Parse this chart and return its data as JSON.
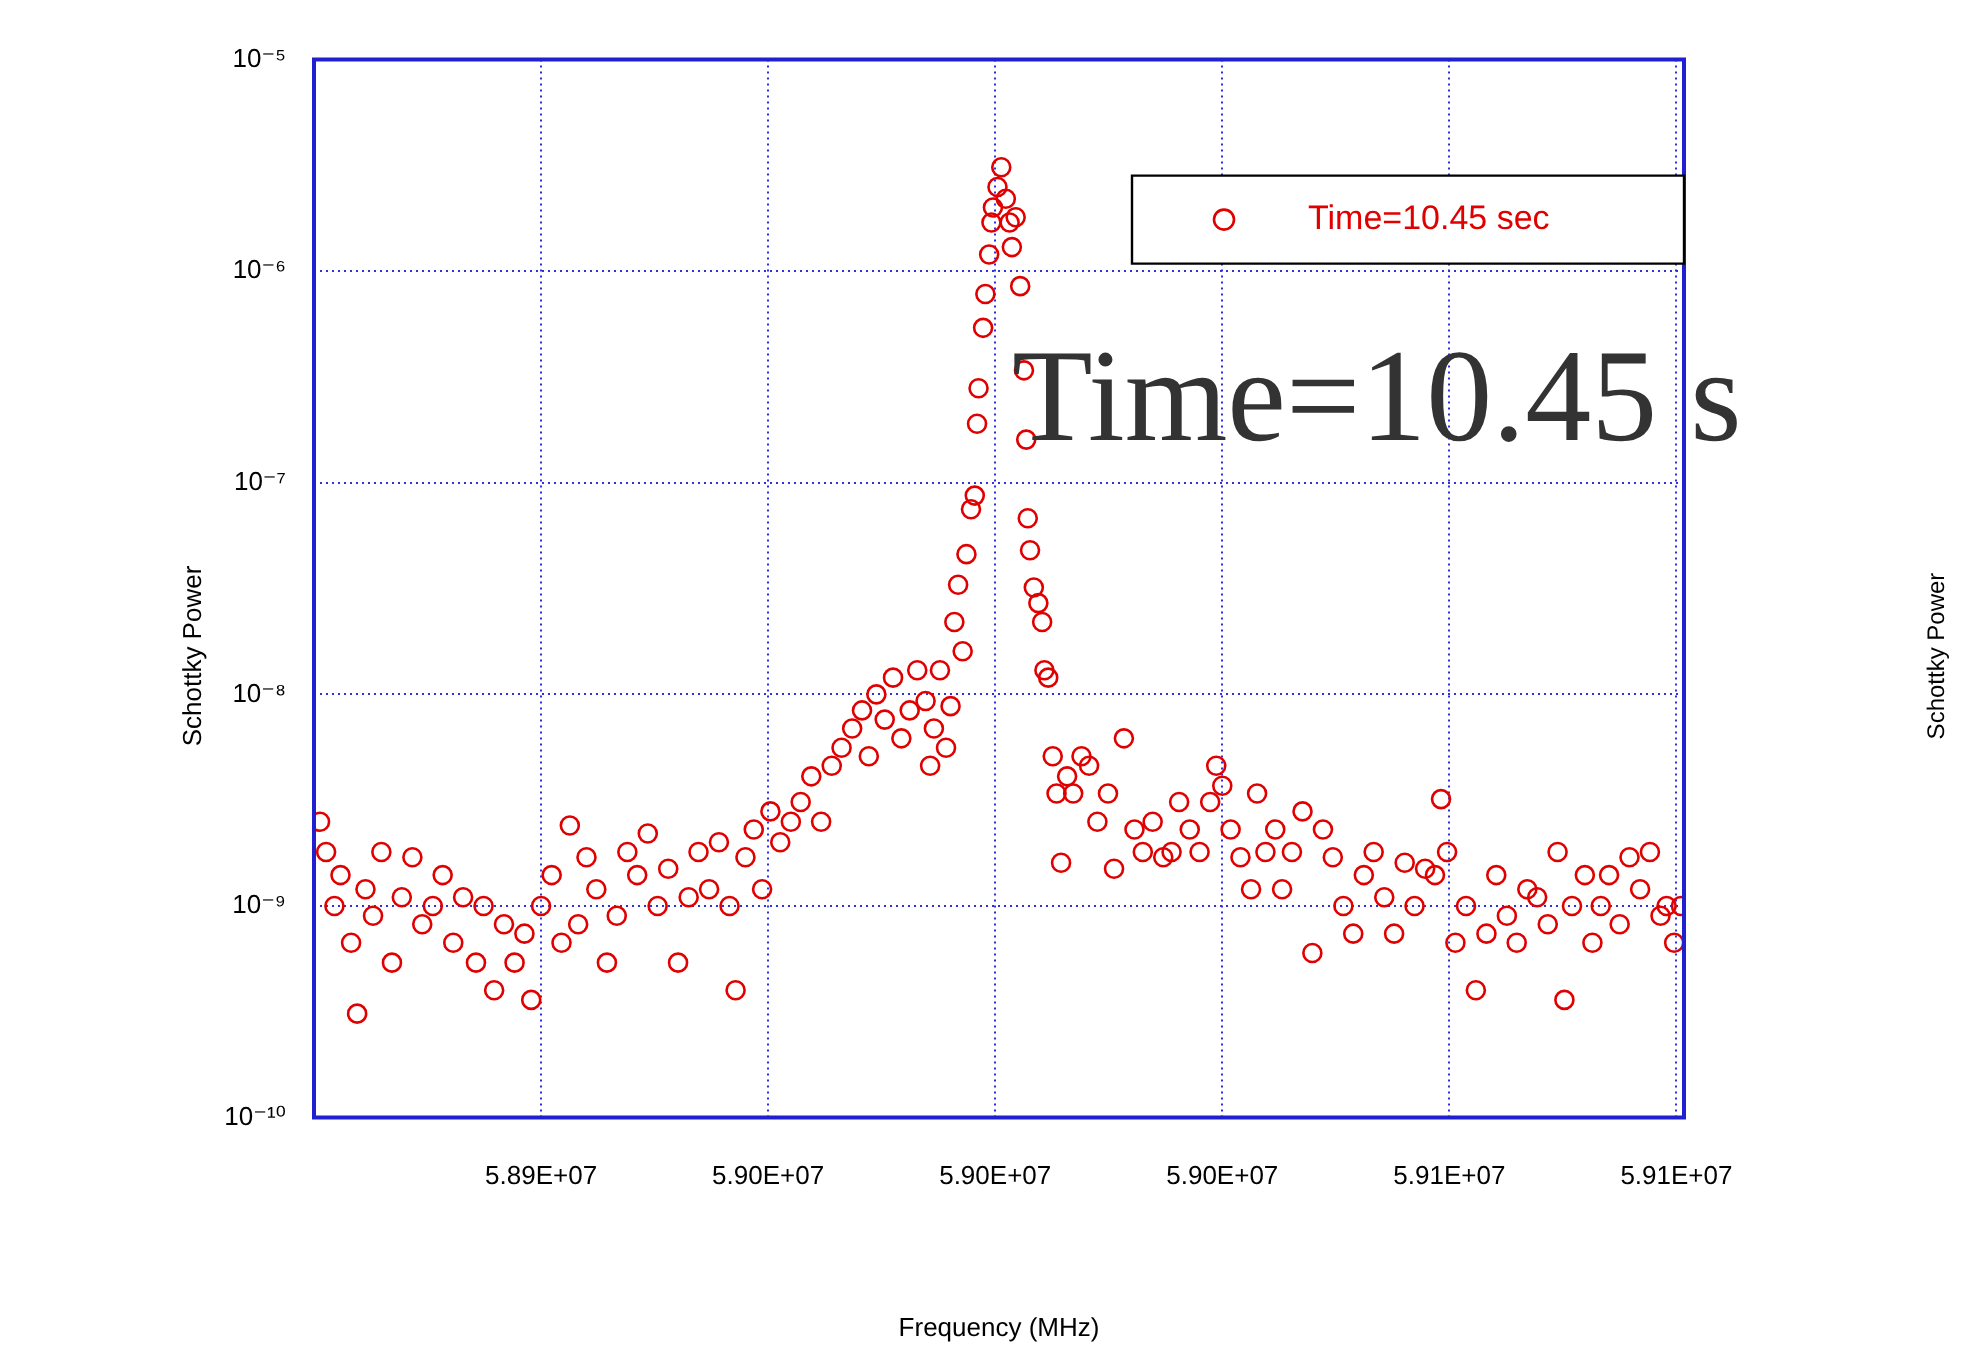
{
  "chart_data": {
    "type": "scatter",
    "xlabel": "Frequency (MHz)",
    "ylabel": "Schottky Power",
    "annotations": [
      "Time=10.45 s",
      "Schottky Power"
    ],
    "log": "y",
    "grid": true,
    "legend": "top right",
    "marker": "circle",
    "xlim": [
      58910000,
      59091000
    ],
    "xticks": [
      {
        "value": 58940000,
        "label": "5.89E+07"
      },
      {
        "value": 58970000,
        "label": "5.90E+07"
      },
      {
        "value": 59000000,
        "label": "5.90E+07"
      },
      {
        "value": 59030000,
        "label": "5.90E+07"
      },
      {
        "value": 59060000,
        "label": "5.91E+07"
      },
      {
        "value": 59090000,
        "label": "5.91E+07"
      }
    ],
    "ylim": [
      1e-10,
      1e-05
    ],
    "yticks": [
      {
        "value": 1e-10,
        "label": "10⁻¹⁰"
      },
      {
        "value": 1e-09,
        "label": "10⁻⁹"
      },
      {
        "value": 1e-08,
        "label": "10⁻⁸"
      },
      {
        "value": 1e-07,
        "label": "10⁻⁷"
      },
      {
        "value": 1e-06,
        "label": "10⁻⁶"
      },
      {
        "value": 1e-05,
        "label": "10⁻⁵"
      }
    ],
    "series": [
      {
        "name": "Time=10.45 sec",
        "color": "#e00000",
        "x": [
          58910800,
          58911600,
          58912700,
          58913500,
          58914900,
          58915700,
          58916800,
          58917800,
          58918900,
          58920300,
          58921600,
          58923000,
          58924300,
          58925700,
          58927000,
          58928400,
          58929700,
          58931400,
          58932400,
          58933800,
          58935100,
          58936500,
          58937800,
          58938700,
          58940000,
          58941400,
          58942700,
          58943800,
          58944900,
          58946000,
          58947300,
          58948700,
          58950000,
          58951400,
          58952700,
          58954100,
          58955400,
          58956800,
          58958100,
          58959500,
          58960800,
          58962200,
          58963500,
          58964900,
          58965700,
          58967000,
          58968100,
          58969200,
          58970300,
          58971600,
          58973000,
          58974300,
          58975700,
          58977000,
          58978400,
          58979700,
          58981100,
          58982400,
          58983300,
          58984300,
          58985400,
          58986500,
          58987600,
          58988700,
          58989700,
          58990800,
          58991400,
          58991900,
          58992700,
          58993500,
          58994100,
          58994600,
          58995100,
          58995700,
          58996200,
          58996800,
          58997300,
          58997600,
          58997800,
          58998400,
          58998700,
          58999200,
          58999500,
          58999700,
          59000300,
          59000800,
          59001400,
          59001900,
          59002200,
          59002700,
          59003300,
          59003800,
          59004100,
          59004300,
          59004600,
          59005100,
          59005700,
          59006200,
          59006500,
          59007000,
          59007600,
          59008100,
          59008700,
          59009500,
          59010300,
          59011400,
          59012400,
          59013500,
          59014900,
          59015700,
          59017000,
          59018400,
          59019500,
          59020800,
          59022200,
          59023300,
          59024300,
          59025700,
          59027000,
          59028400,
          59029200,
          59030000,
          59031100,
          59032400,
          59033800,
          59034600,
          59035700,
          59037000,
          59037900,
          59039200,
          59040600,
          59041900,
          59043300,
          59044600,
          59046000,
          59047300,
          59048700,
          59050000,
          59051400,
          59052700,
          59054100,
          59055400,
          59056800,
          59058100,
          59058900,
          59059700,
          59060800,
          59062200,
          59063500,
          59064900,
          59066200,
          59067600,
          59068900,
          59070300,
          59071600,
          59073000,
          59074300,
          59075200,
          59076200,
          59077900,
          59078900,
          59080000,
          59081100,
          59082500,
          59083800,
          59085200,
          59086500,
          59087900,
          59088700,
          59089700,
          59090600
        ],
        "values": [
          2.5e-09,
          1.8e-09,
          1e-09,
          1.4e-09,
          6.7e-10,
          3.1e-10,
          1.2e-09,
          9e-10,
          1.8e-09,
          5.4e-10,
          1.1e-09,
          1.7e-09,
          8.2e-10,
          1e-09,
          1.4e-09,
          6.7e-10,
          1.1e-09,
          5.4e-10,
          1e-09,
          4e-10,
          8.2e-10,
          5.4e-10,
          7.4e-10,
          3.6e-10,
          1e-09,
          1.4e-09,
          6.7e-10,
          2.4e-09,
          8.2e-10,
          1.7e-09,
          1.2e-09,
          5.4e-10,
          9e-10,
          1.8e-09,
          1.4e-09,
          2.2e-09,
          1e-09,
          1.5e-09,
          5.4e-10,
          1.1e-09,
          1.8e-09,
          1.2e-09,
          2e-09,
          1e-09,
          4e-10,
          1.7e-09,
          2.3e-09,
          1.2e-09,
          2.8e-09,
          2e-09,
          2.5e-09,
          3.1e-09,
          4.1e-09,
          2.5e-09,
          4.6e-09,
          5.6e-09,
          6.9e-09,
          8.4e-09,
          5.1e-09,
          1e-08,
          7.6e-09,
          1.2e-08,
          6.2e-09,
          8.4e-09,
          1.3e-08,
          9.3e-09,
          4.6e-09,
          6.9e-09,
          1.3e-08,
          5.6e-09,
          8.8e-09,
          2.2e-08,
          3.3e-08,
          1.6e-08,
          4.6e-08,
          7.5e-08,
          8.7e-08,
          1.9e-07,
          2.8e-07,
          5.4e-07,
          7.8e-07,
          1.2e-06,
          1.7e-06,
          2e-06,
          2.5e-06,
          3.1e-06,
          2.2e-06,
          1.7e-06,
          1.3e-06,
          1.8e-06,
          8.5e-07,
          3.4e-07,
          1.6e-07,
          6.8e-08,
          4.8e-08,
          3.2e-08,
          2.7e-08,
          2.2e-08,
          1.3e-08,
          1.2e-08,
          5.1e-09,
          3.4e-09,
          1.6e-09,
          4.1e-09,
          3.4e-09,
          5.1e-09,
          4.6e-09,
          2.5e-09,
          3.4e-09,
          1.5e-09,
          6.2e-09,
          2.3e-09,
          1.8e-09,
          2.5e-09,
          1.7e-09,
          1.8e-09,
          3.1e-09,
          2.3e-09,
          1.8e-09,
          3.1e-09,
          4.6e-09,
          3.7e-09,
          2.3e-09,
          1.7e-09,
          1.2e-09,
          3.4e-09,
          1.8e-09,
          2.3e-09,
          1.2e-09,
          1.8e-09,
          2.8e-09,
          6e-10,
          2.3e-09,
          1.7e-09,
          1e-09,
          7.4e-10,
          1.4e-09,
          1.8e-09,
          1.1e-09,
          7.4e-10,
          1.6e-09,
          1e-09,
          1.5e-09,
          1.4e-09,
          3.2e-09,
          1.8e-09,
          6.7e-10,
          1e-09,
          4e-10,
          7.4e-10,
          1.4e-09,
          9e-10,
          6.7e-10,
          1.2e-09,
          1.1e-09,
          8.2e-10,
          1.8e-09,
          3.6e-10,
          1e-09,
          1.4e-09,
          6.7e-10,
          1e-09,
          1.4e-09,
          8.2e-10,
          1.7e-09,
          1.2e-09,
          1.8e-09,
          9e-10,
          1e-09,
          6.7e-10,
          1e-09
        ]
      }
    ]
  }
}
